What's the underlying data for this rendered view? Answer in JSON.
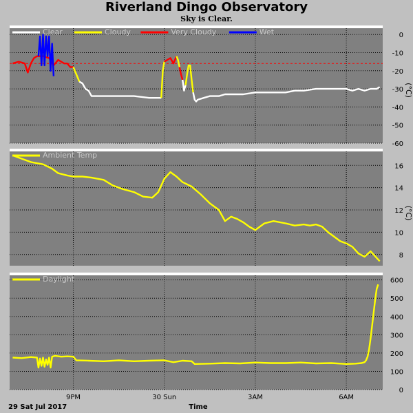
{
  "header": {
    "title": "Riverland Dingo Observatory",
    "subtitle": "Sky is Clear."
  },
  "footer": {
    "date_label": "29 Sat Jul 2017",
    "x_axis_label": "Time"
  },
  "chart_data": [
    {
      "id": "sky",
      "type": "line",
      "y_unit": "(°C)",
      "ylim": [
        -60,
        5
      ],
      "y_ticks": [
        "0",
        "-10",
        "-20",
        "-30",
        "-40",
        "-50",
        "-60"
      ],
      "y_tick_values": [
        0,
        -10,
        -20,
        -30,
        -40,
        -50,
        -60
      ],
      "x_tick_labels": [
        "9PM",
        "30 Sun",
        "3AM",
        "6AM"
      ],
      "x_tick_values": [
        21,
        24,
        27,
        30
      ],
      "xlim": [
        18.9,
        31.2
      ],
      "grid": true,
      "legend_placement": "top-left",
      "threshold": {
        "value": -16,
        "style": "dashed",
        "color": "#ff0000"
      },
      "series": [
        {
          "name": "Clear",
          "color": "#ffffff"
        },
        {
          "name": "Cloudy",
          "color": "#ffff00"
        },
        {
          "name": "Very Cloudy",
          "color": "#ff0000"
        },
        {
          "name": "Wet",
          "color": "#0000ff"
        }
      ],
      "segments": [
        {
          "series": "Very Cloudy",
          "x": [
            19.0,
            19.2,
            19.4,
            19.5,
            19.6,
            19.7,
            19.8,
            19.9,
            20.0,
            20.2,
            20.35,
            20.5,
            20.6,
            20.7,
            20.8,
            20.9,
            21.0
          ],
          "y": [
            -16,
            -15,
            -16,
            -21,
            -16,
            -13,
            -12,
            -12,
            -12,
            -13,
            -17,
            -14,
            -15,
            -16,
            -16,
            -18,
            -18
          ]
        },
        {
          "series": "Wet",
          "x": [
            19.85,
            19.9,
            19.95,
            20.0,
            20.05,
            20.1,
            20.15,
            20.2,
            20.25,
            20.3,
            20.35
          ],
          "y": [
            -12,
            -1,
            -17,
            0,
            -17,
            -1,
            -12,
            -1,
            -20,
            -5,
            -23
          ]
        },
        {
          "series": "Cloudy",
          "x": [
            21.0,
            21.1,
            21.2
          ],
          "y": [
            -18,
            -22,
            -26
          ]
        },
        {
          "series": "Clear",
          "x": [
            21.2,
            21.3,
            21.4,
            21.5,
            21.6,
            21.8,
            22.0,
            22.5,
            23.0,
            23.5,
            23.8,
            23.9
          ],
          "y": [
            -26,
            -27,
            -30,
            -31,
            -34,
            -34,
            -34,
            -34,
            -34,
            -35,
            -35,
            -35
          ]
        },
        {
          "series": "Cloudy",
          "x": [
            23.9,
            23.95,
            24.0
          ],
          "y": [
            -35,
            -20,
            -15
          ]
        },
        {
          "series": "Very Cloudy",
          "x": [
            24.0,
            24.1,
            24.2,
            24.3,
            24.4
          ],
          "y": [
            -15,
            -14,
            -13,
            -16,
            -12
          ]
        },
        {
          "series": "Cloudy",
          "x": [
            24.4,
            24.45,
            24.5
          ],
          "y": [
            -12,
            -14,
            -18
          ]
        },
        {
          "series": "Very Cloudy",
          "x": [
            24.5,
            24.55,
            24.6
          ],
          "y": [
            -18,
            -22,
            -25
          ]
        },
        {
          "series": "Clear",
          "x": [
            24.6,
            24.65,
            24.7
          ],
          "y": [
            -25,
            -31,
            -28
          ]
        },
        {
          "series": "Cloudy",
          "x": [
            24.7,
            24.75,
            24.8,
            24.85,
            24.9,
            24.95
          ],
          "y": [
            -28,
            -22,
            -17,
            -17,
            -25,
            -32
          ]
        },
        {
          "series": "Clear",
          "x": [
            24.95,
            25.0,
            25.05,
            25.1,
            25.3,
            25.5,
            25.8,
            26.0,
            26.3,
            26.6,
            27.0,
            27.3,
            27.6,
            28.0,
            28.3,
            28.6,
            29.0,
            29.3,
            29.6,
            30.0,
            30.2,
            30.4,
            30.6,
            30.8,
            31.0,
            31.1
          ],
          "y": [
            -32,
            -36,
            -37,
            -36,
            -35,
            -34,
            -34,
            -33,
            -33,
            -33,
            -32,
            -32,
            -32,
            -32,
            -31,
            -31,
            -30,
            -30,
            -30,
            -30,
            -31,
            -30,
            -31,
            -30,
            -30,
            -29
          ]
        }
      ]
    },
    {
      "id": "ambient",
      "type": "line",
      "y_unit": "(°C)",
      "ylim": [
        7,
        17.5
      ],
      "y_ticks": [
        "16",
        "14",
        "12",
        "10",
        "8"
      ],
      "y_tick_values": [
        16,
        14,
        12,
        10,
        8
      ],
      "x_tick_labels": [
        "9PM",
        "30 Sun",
        "3AM",
        "6AM"
      ],
      "x_tick_values": [
        21,
        24,
        27,
        30
      ],
      "xlim": [
        18.9,
        31.2
      ],
      "grid": true,
      "legend_placement": "top-left",
      "series": [
        {
          "name": "Ambient Temp",
          "color": "#ffff00",
          "x": [
            19.0,
            19.3,
            19.6,
            20.0,
            20.3,
            20.5,
            20.8,
            21.0,
            21.3,
            21.6,
            22.0,
            22.3,
            22.6,
            23.0,
            23.3,
            23.6,
            23.8,
            24.0,
            24.2,
            24.4,
            24.6,
            24.9,
            25.2,
            25.5,
            25.8,
            26.0,
            26.2,
            26.4,
            26.6,
            26.8,
            27.0,
            27.3,
            27.6,
            28.0,
            28.3,
            28.6,
            28.8,
            29.0,
            29.2,
            29.4,
            29.6,
            29.8,
            30.0,
            30.2,
            30.4,
            30.6,
            30.8,
            31.0,
            31.1
          ],
          "y": [
            16.9,
            16.6,
            16.3,
            16.1,
            15.7,
            15.3,
            15.1,
            15.0,
            15.0,
            14.9,
            14.7,
            14.2,
            13.9,
            13.6,
            13.2,
            13.1,
            13.6,
            14.8,
            15.4,
            15.0,
            14.5,
            14.1,
            13.4,
            12.6,
            12.0,
            11.0,
            11.4,
            11.2,
            10.9,
            10.5,
            10.2,
            10.8,
            11.0,
            10.8,
            10.6,
            10.7,
            10.6,
            10.7,
            10.5,
            10.0,
            9.6,
            9.2,
            9.0,
            8.7,
            8.1,
            7.8,
            8.3,
            7.7,
            7.4
          ]
        }
      ]
    },
    {
      "id": "daylight",
      "type": "line",
      "ylim": [
        0,
        640
      ],
      "y_ticks": [
        "600",
        "500",
        "400",
        "300",
        "200",
        "100",
        "0"
      ],
      "y_tick_values": [
        600,
        500,
        400,
        300,
        200,
        100,
        0
      ],
      "x_tick_labels": [
        "9PM",
        "30 Sun",
        "3AM",
        "6AM"
      ],
      "x_tick_values": [
        21,
        24,
        27,
        30
      ],
      "xlim": [
        18.9,
        31.2
      ],
      "grid": true,
      "legend_placement": "top-left",
      "series": [
        {
          "name": "Daylight",
          "color": "#ffff00",
          "x": [
            19.0,
            19.3,
            19.6,
            19.8,
            19.85,
            19.9,
            19.95,
            20.0,
            20.05,
            20.1,
            20.15,
            20.2,
            20.25,
            20.3,
            20.4,
            20.6,
            20.8,
            21.0,
            21.1,
            21.5,
            22.0,
            22.5,
            23.0,
            23.5,
            24.0,
            24.3,
            24.6,
            24.9,
            25.0,
            25.5,
            26.0,
            26.5,
            27.0,
            27.5,
            28.0,
            28.5,
            29.0,
            29.5,
            30.0,
            30.3,
            30.5,
            30.6,
            30.65,
            30.7,
            30.75,
            30.8,
            30.85,
            30.9,
            30.95,
            31.0,
            31.05
          ],
          "y": [
            175,
            172,
            178,
            175,
            120,
            170,
            130,
            175,
            125,
            165,
            135,
            175,
            120,
            180,
            185,
            180,
            182,
            180,
            160,
            158,
            155,
            160,
            155,
            158,
            160,
            150,
            158,
            155,
            140,
            142,
            145,
            143,
            148,
            145,
            145,
            148,
            143,
            145,
            140,
            142,
            145,
            150,
            160,
            180,
            220,
            280,
            350,
            420,
            490,
            550,
            575
          ]
        }
      ]
    }
  ]
}
